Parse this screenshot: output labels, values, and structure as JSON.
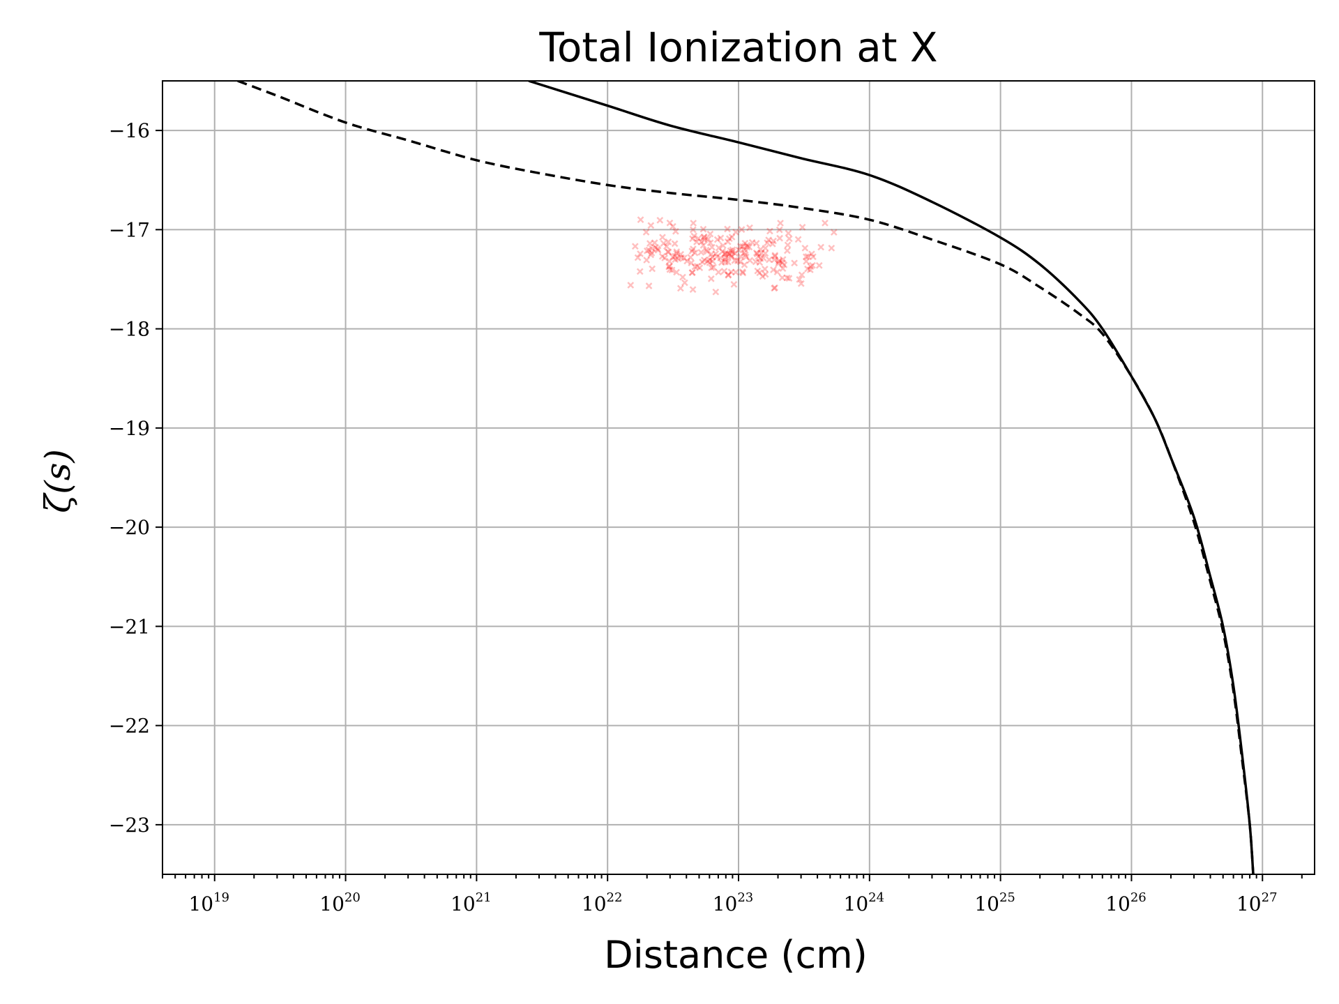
{
  "chart_data": {
    "type": "line",
    "title": "Total Ionization at X",
    "xlabel": "Distance (cm)",
    "ylabel": "ζ(s)",
    "xscale": "log",
    "xlim": [
      4e+18,
      2.5e+27
    ],
    "ylim": [
      -23.5,
      -15.5
    ],
    "grid": true,
    "xticks": [
      {
        "value": 1e+19,
        "label": "10",
        "exp": "19"
      },
      {
        "value": 1e+20,
        "label": "10",
        "exp": "20"
      },
      {
        "value": 1e+21,
        "label": "10",
        "exp": "21"
      },
      {
        "value": 1e+22,
        "label": "10",
        "exp": "22"
      },
      {
        "value": 1e+23,
        "label": "10",
        "exp": "23"
      },
      {
        "value": 1e+24,
        "label": "10",
        "exp": "24"
      },
      {
        "value": 1e+25,
        "label": "10",
        "exp": "25"
      },
      {
        "value": 1e+26,
        "label": "10",
        "exp": "26"
      },
      {
        "value": 1e+27,
        "label": "10",
        "exp": "27"
      }
    ],
    "yticks": [
      {
        "value": -16,
        "label": "−16"
      },
      {
        "value": -17,
        "label": "−17"
      },
      {
        "value": -18,
        "label": "−18"
      },
      {
        "value": -19,
        "label": "−19"
      },
      {
        "value": -20,
        "label": "−20"
      },
      {
        "value": -21,
        "label": "−21"
      },
      {
        "value": -22,
        "label": "−22"
      },
      {
        "value": -23,
        "label": "−23"
      }
    ],
    "series": [
      {
        "style": "solid",
        "color": "#000000",
        "x": [
          2.5e+21,
          1e+22,
          3e+22,
          1e+23,
          3e+23,
          1e+24,
          3e+24,
          1e+25,
          2e+25,
          4e+25,
          6e+25,
          1e+26,
          1.5e+26,
          2e+26,
          3e+26,
          4e+26,
          5e+26,
          6e+26,
          7e+26,
          8e+26,
          8.5e+26
        ],
        "y": [
          -15.5,
          -15.75,
          -15.95,
          -16.12,
          -16.28,
          -16.45,
          -16.72,
          -17.08,
          -17.35,
          -17.72,
          -18.0,
          -18.48,
          -18.9,
          -19.3,
          -19.9,
          -20.5,
          -21.0,
          -21.6,
          -22.3,
          -23.0,
          -23.5
        ]
      },
      {
        "style": "dashed",
        "color": "#000000",
        "x": [
          1.5e+19,
          3e+19,
          1e+20,
          3e+20,
          1e+21,
          3e+21,
          1e+22,
          3e+22,
          1e+23,
          3e+23,
          1e+24,
          3e+24,
          1e+25,
          2e+25,
          4e+25,
          6e+25,
          1e+26,
          1.5e+26,
          2e+26,
          3e+26,
          4e+26,
          5e+26,
          6e+26,
          7e+26,
          8e+26,
          8.5e+26
        ],
        "y": [
          -15.5,
          -15.65,
          -15.92,
          -16.1,
          -16.3,
          -16.43,
          -16.55,
          -16.63,
          -16.7,
          -16.78,
          -16.9,
          -17.1,
          -17.35,
          -17.58,
          -17.85,
          -18.05,
          -18.48,
          -18.9,
          -19.3,
          -19.95,
          -20.55,
          -21.05,
          -21.65,
          -22.35,
          -23.0,
          -23.5
        ]
      }
    ],
    "scatter": {
      "color": "#ff0000",
      "marker": "x",
      "opacity": 0.25,
      "x_range": [
        1.5e+22,
        6e+23
      ],
      "x_center": 8e+22,
      "y_center": -17.25,
      "y_spread": 0.15,
      "count": 220
    }
  }
}
